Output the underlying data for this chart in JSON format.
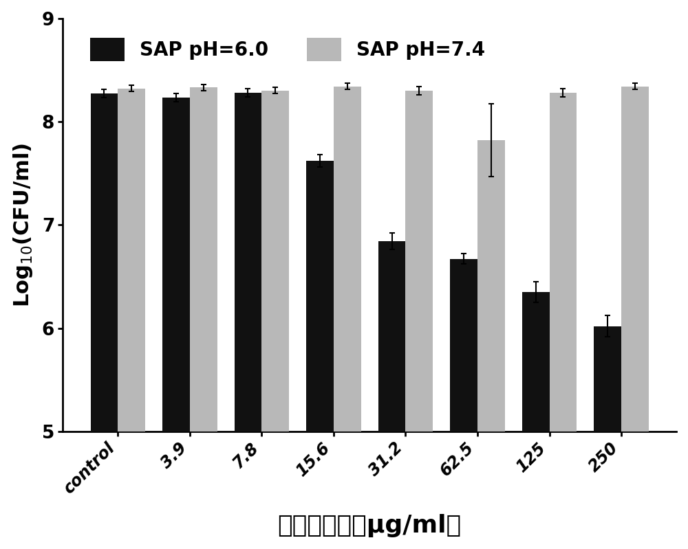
{
  "categories": [
    "control",
    "3.9",
    "7.8",
    "15.6",
    "31.2",
    "62.5",
    "125",
    "250"
  ],
  "ph60_values": [
    8.27,
    8.23,
    8.28,
    7.62,
    6.84,
    6.67,
    6.35,
    6.02
  ],
  "ph74_values": [
    8.32,
    8.33,
    8.3,
    8.34,
    8.3,
    7.82,
    8.28,
    8.34
  ],
  "ph60_errors": [
    0.04,
    0.04,
    0.04,
    0.06,
    0.08,
    0.05,
    0.1,
    0.1
  ],
  "ph74_errors": [
    0.03,
    0.03,
    0.03,
    0.03,
    0.04,
    0.35,
    0.04,
    0.03
  ],
  "ph60_color": "#111111",
  "ph74_color": "#b8b8b8",
  "bar_width": 0.38,
  "ylim": [
    5,
    9
  ],
  "yticks": [
    5,
    6,
    7,
    8,
    9
  ],
  "ylabel": "Log$_{10}$(CFU/ml)",
  "xlabel": "抗菌肽浓度（μg/ml）",
  "legend_label_ph60": "SAP pH=6.0",
  "legend_label_ph74": "SAP pH=7.4",
  "label_fontsize": 22,
  "tick_fontsize": 17,
  "legend_fontsize": 20,
  "xlabel_fontsize": 26,
  "background_color": "#ffffff",
  "error_capsize": 3,
  "error_linewidth": 1.5
}
